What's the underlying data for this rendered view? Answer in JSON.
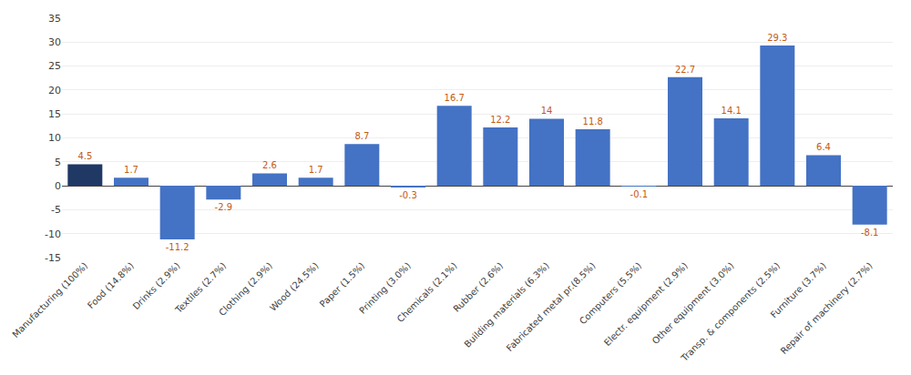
{
  "chart_data": {
    "type": "bar",
    "categories": [
      "Manufacturing (100%)",
      "Food (14.8%)",
      "Drinks (2.9%)",
      "Textiles (2.7%)",
      "Clothing (2.9%)",
      "Wood (24.5%)",
      "Paper (1.5%)",
      "Printing (3.0%)",
      "Chemicals (2.1%)",
      "Rubber (2.6%)",
      "Building materials (6.3%)",
      "Fabricated metal pr.(8.5%)",
      "Computers (5.5%)",
      "Electr. equipment (2.9%)",
      "Other equipment (3.0%)",
      "Transp. & components (2.5%)",
      "Furniture (3.7%)",
      "Repair of machinery (2.7%)"
    ],
    "values": [
      4.5,
      1.7,
      -11.2,
      -2.9,
      2.6,
      1.7,
      8.7,
      -0.3,
      16.7,
      12.2,
      14.0,
      11.8,
      -0.1,
      22.7,
      14.1,
      29.3,
      6.4,
      -8.1
    ],
    "colors": [
      "#1f3864",
      "#4472c4",
      "#4472c4",
      "#4472c4",
      "#4472c4",
      "#4472c4",
      "#4472c4",
      "#4472c4",
      "#4472c4",
      "#4472c4",
      "#4472c4",
      "#4472c4",
      "#4472c4",
      "#4472c4",
      "#4472c4",
      "#4472c4",
      "#4472c4",
      "#4472c4"
    ],
    "ylim": [
      -15,
      35
    ],
    "yticks": [
      -15,
      -10,
      -5,
      0,
      5,
      10,
      15,
      20,
      25,
      30,
      35
    ],
    "grid": true,
    "data_labels": true
  }
}
